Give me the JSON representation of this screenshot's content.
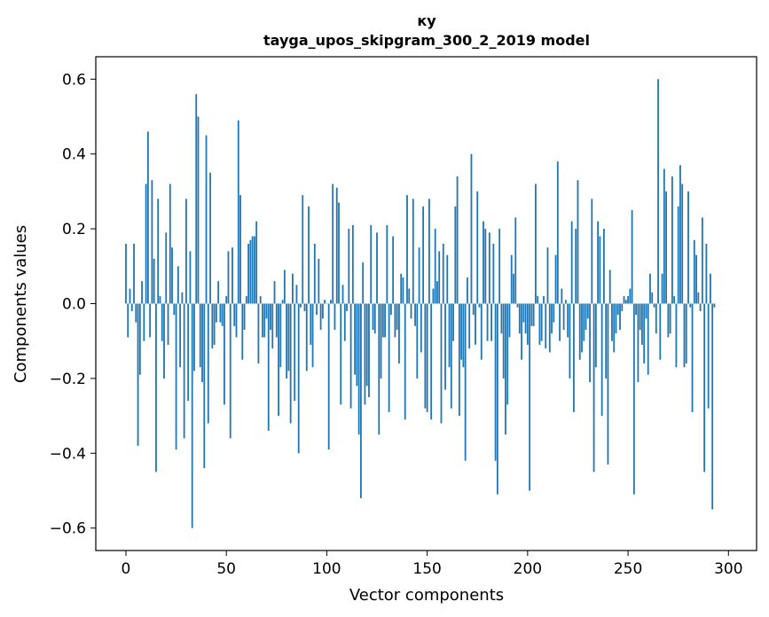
{
  "chart_data": {
    "type": "bar",
    "title": "ку",
    "subtitle": "tayga_upos_skipgram_300_2_2019 model",
    "xlabel": "Vector components",
    "ylabel": "Components values",
    "xlim": [
      -15,
      314
    ],
    "ylim": [
      -0.66,
      0.66
    ],
    "xticks": [
      0,
      50,
      100,
      150,
      200,
      250,
      300
    ],
    "xtick_labels": [
      "0",
      "50",
      "100",
      "150",
      "200",
      "250",
      "300"
    ],
    "yticks": [
      -0.6,
      -0.4,
      -0.2,
      0.0,
      0.2,
      0.4,
      0.6
    ],
    "ytick_labels": [
      "−0.6",
      "−0.4",
      "−0.2",
      "0.0",
      "0.2",
      "0.4",
      "0.6"
    ],
    "grid": false,
    "bar_color": "#1f77b4",
    "values": [
      0.16,
      -0.09,
      0.04,
      -0.02,
      0.16,
      -0.05,
      -0.38,
      -0.19,
      0.06,
      -0.1,
      0.32,
      0.46,
      -0.09,
      0.33,
      0.12,
      -0.45,
      0.28,
      0.02,
      -0.1,
      -0.2,
      0.19,
      -0.11,
      0.32,
      0.15,
      -0.03,
      -0.39,
      0.1,
      -0.17,
      0.03,
      -0.36,
      0.28,
      -0.26,
      0.14,
      -0.6,
      -0.18,
      0.56,
      0.5,
      -0.17,
      -0.21,
      -0.44,
      0.45,
      -0.32,
      0.35,
      -0.12,
      -0.11,
      -0.05,
      0.06,
      -0.05,
      -0.06,
      -0.27,
      0.02,
      0.14,
      -0.36,
      0.15,
      -0.06,
      -0.09,
      0.49,
      0.29,
      -0.15,
      -0.07,
      0.02,
      0.16,
      0.17,
      0.18,
      0.18,
      0.22,
      -0.16,
      0.02,
      -0.09,
      -0.09,
      -0.04,
      -0.34,
      -0.07,
      -0.12,
      0.06,
      -0.09,
      -0.3,
      -0.17,
      0.01,
      0.09,
      -0.2,
      -0.18,
      -0.32,
      0.08,
      -0.26,
      0.05,
      -0.4,
      -0.01,
      0.29,
      -0.02,
      -0.18,
      0.26,
      -0.11,
      -0.17,
      0.16,
      -0.03,
      0.12,
      -0.07,
      -0.04,
      0.01,
      0.0,
      -0.39,
      0.01,
      0.32,
      -0.07,
      0.31,
      0.27,
      -0.27,
      0.05,
      -0.1,
      -0.02,
      0.2,
      -0.28,
      0.21,
      -0.19,
      -0.22,
      -0.35,
      -0.52,
      0.11,
      -0.27,
      -0.22,
      -0.25,
      0.21,
      -0.07,
      -0.08,
      0.19,
      -0.35,
      -0.2,
      -0.09,
      -0.09,
      0.21,
      -0.29,
      -0.03,
      0.18,
      -0.09,
      -0.07,
      -0.16,
      0.08,
      0.07,
      -0.31,
      0.29,
      0.04,
      -0.04,
      0.28,
      -0.06,
      -0.2,
      0.15,
      -0.13,
      0.26,
      -0.28,
      -0.29,
      0.28,
      -0.31,
      0.04,
      0.2,
      0.06,
      0.14,
      -0.32,
      0.16,
      -0.23,
      0.13,
      -0.17,
      -0.28,
      -0.1,
      0.26,
      0.34,
      -0.3,
      -0.15,
      -0.17,
      -0.42,
      0.07,
      -0.12,
      0.4,
      -0.03,
      -0.11,
      0.3,
      -0.01,
      -0.15,
      0.22,
      0.2,
      -0.1,
      0.19,
      -0.1,
      0.16,
      -0.42,
      -0.51,
      0.2,
      -0.08,
      -0.2,
      -0.35,
      -0.27,
      -0.09,
      0.13,
      0.08,
      0.23,
      -0.01,
      -0.08,
      -0.15,
      -0.05,
      -0.08,
      -0.11,
      -0.5,
      -0.06,
      -0.06,
      0.32,
      0.02,
      -0.11,
      -0.1,
      0.02,
      -0.12,
      0.15,
      -0.13,
      -0.08,
      -0.05,
      0.13,
      0.38,
      -0.1,
      0.04,
      -0.07,
      0.01,
      -0.09,
      -0.2,
      0.22,
      -0.29,
      0.2,
      0.33,
      -0.15,
      -0.13,
      -0.1,
      -0.07,
      -0.04,
      -0.21,
      0.28,
      -0.45,
      -0.17,
      0.22,
      0.18,
      -0.3,
      0.2,
      -0.2,
      -0.43,
      0.09,
      -0.1,
      -0.13,
      -0.08,
      -0.03,
      -0.07,
      -0.02,
      0.02,
      0.01,
      0.02,
      0.04,
      0.25,
      -0.51,
      -0.03,
      -0.21,
      -0.07,
      -0.11,
      -0.16,
      -0.04,
      -0.19,
      0.08,
      0.03,
      -0.01,
      -0.08,
      0.6,
      -0.15,
      0.08,
      0.36,
      0.3,
      -0.09,
      -0.08,
      0.34,
      0.02,
      -0.17,
      0.26,
      0.37,
      0.32,
      -0.17,
      -0.16,
      0.3,
      -0.01,
      -0.29,
      0.17,
      0.13,
      0.03,
      -0.02,
      0.23,
      -0.45,
      0.16,
      -0.28,
      0.08,
      -0.55,
      -0.01
    ]
  }
}
